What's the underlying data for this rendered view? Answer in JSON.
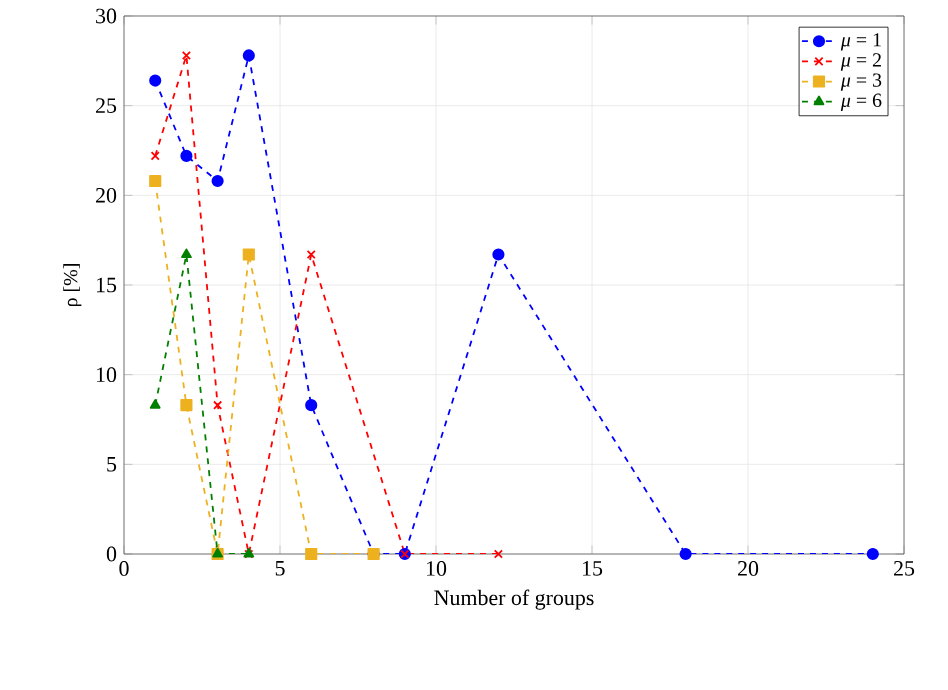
{
  "chart_data": {
    "type": "line",
    "xlabel": "Number of groups",
    "ylabel": "ρ [%]",
    "series": [
      {
        "name": "*μ* = 1",
        "color": "#0000ff",
        "marker": "circle",
        "x": [
          1,
          2,
          3,
          4,
          6,
          8,
          9,
          12,
          18,
          24
        ],
        "values": [
          26.4,
          22.2,
          20.8,
          27.8,
          8.3,
          0,
          0,
          16.7,
          0,
          0
        ]
      },
      {
        "name": "*μ* = 2",
        "color": "#ff0000",
        "marker": "cross",
        "x": [
          1,
          2,
          3,
          4,
          6,
          9,
          12
        ],
        "values": [
          22.2,
          27.8,
          8.3,
          0,
          16.7,
          0,
          0
        ]
      },
      {
        "name": "*μ* = 3",
        "color": "#edb120",
        "marker": "square",
        "x": [
          1,
          2,
          3,
          4,
          6,
          8
        ],
        "values": [
          20.8,
          8.3,
          0,
          16.7,
          0,
          0
        ]
      },
      {
        "name": "*μ* = 6",
        "color": "#008000",
        "marker": "triangle",
        "x": [
          1,
          2,
          3,
          4
        ],
        "values": [
          8.3,
          16.7,
          0,
          0
        ]
      }
    ],
    "xlim": [
      0,
      25
    ],
    "xticks": [
      0,
      5,
      10,
      15,
      20,
      25
    ],
    "ylim": [
      0,
      30
    ],
    "yticks": [
      0,
      5,
      10,
      15,
      20,
      25,
      30
    ],
    "grid": true,
    "legend": "top right",
    "line_style": "dashed"
  }
}
